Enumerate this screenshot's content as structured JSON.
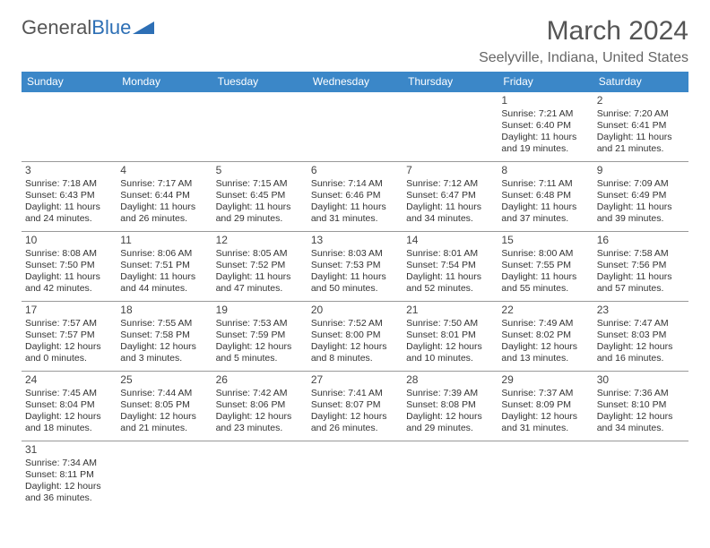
{
  "brand": {
    "part1": "General",
    "part2": "Blue"
  },
  "header": {
    "title": "March 2024",
    "location": "Seelyville, Indiana, United States"
  },
  "colors": {
    "header_bg": "#3b87c8",
    "header_text": "#ffffff",
    "border": "#3b87c8"
  },
  "day_headers": [
    "Sunday",
    "Monday",
    "Tuesday",
    "Wednesday",
    "Thursday",
    "Friday",
    "Saturday"
  ],
  "weeks": [
    [
      null,
      null,
      null,
      null,
      null,
      {
        "n": "1",
        "sr": "Sunrise: 7:21 AM",
        "ss": "Sunset: 6:40 PM",
        "d1": "Daylight: 11 hours",
        "d2": "and 19 minutes."
      },
      {
        "n": "2",
        "sr": "Sunrise: 7:20 AM",
        "ss": "Sunset: 6:41 PM",
        "d1": "Daylight: 11 hours",
        "d2": "and 21 minutes."
      }
    ],
    [
      {
        "n": "3",
        "sr": "Sunrise: 7:18 AM",
        "ss": "Sunset: 6:43 PM",
        "d1": "Daylight: 11 hours",
        "d2": "and 24 minutes."
      },
      {
        "n": "4",
        "sr": "Sunrise: 7:17 AM",
        "ss": "Sunset: 6:44 PM",
        "d1": "Daylight: 11 hours",
        "d2": "and 26 minutes."
      },
      {
        "n": "5",
        "sr": "Sunrise: 7:15 AM",
        "ss": "Sunset: 6:45 PM",
        "d1": "Daylight: 11 hours",
        "d2": "and 29 minutes."
      },
      {
        "n": "6",
        "sr": "Sunrise: 7:14 AM",
        "ss": "Sunset: 6:46 PM",
        "d1": "Daylight: 11 hours",
        "d2": "and 31 minutes."
      },
      {
        "n": "7",
        "sr": "Sunrise: 7:12 AM",
        "ss": "Sunset: 6:47 PM",
        "d1": "Daylight: 11 hours",
        "d2": "and 34 minutes."
      },
      {
        "n": "8",
        "sr": "Sunrise: 7:11 AM",
        "ss": "Sunset: 6:48 PM",
        "d1": "Daylight: 11 hours",
        "d2": "and 37 minutes."
      },
      {
        "n": "9",
        "sr": "Sunrise: 7:09 AM",
        "ss": "Sunset: 6:49 PM",
        "d1": "Daylight: 11 hours",
        "d2": "and 39 minutes."
      }
    ],
    [
      {
        "n": "10",
        "sr": "Sunrise: 8:08 AM",
        "ss": "Sunset: 7:50 PM",
        "d1": "Daylight: 11 hours",
        "d2": "and 42 minutes."
      },
      {
        "n": "11",
        "sr": "Sunrise: 8:06 AM",
        "ss": "Sunset: 7:51 PM",
        "d1": "Daylight: 11 hours",
        "d2": "and 44 minutes."
      },
      {
        "n": "12",
        "sr": "Sunrise: 8:05 AM",
        "ss": "Sunset: 7:52 PM",
        "d1": "Daylight: 11 hours",
        "d2": "and 47 minutes."
      },
      {
        "n": "13",
        "sr": "Sunrise: 8:03 AM",
        "ss": "Sunset: 7:53 PM",
        "d1": "Daylight: 11 hours",
        "d2": "and 50 minutes."
      },
      {
        "n": "14",
        "sr": "Sunrise: 8:01 AM",
        "ss": "Sunset: 7:54 PM",
        "d1": "Daylight: 11 hours",
        "d2": "and 52 minutes."
      },
      {
        "n": "15",
        "sr": "Sunrise: 8:00 AM",
        "ss": "Sunset: 7:55 PM",
        "d1": "Daylight: 11 hours",
        "d2": "and 55 minutes."
      },
      {
        "n": "16",
        "sr": "Sunrise: 7:58 AM",
        "ss": "Sunset: 7:56 PM",
        "d1": "Daylight: 11 hours",
        "d2": "and 57 minutes."
      }
    ],
    [
      {
        "n": "17",
        "sr": "Sunrise: 7:57 AM",
        "ss": "Sunset: 7:57 PM",
        "d1": "Daylight: 12 hours",
        "d2": "and 0 minutes."
      },
      {
        "n": "18",
        "sr": "Sunrise: 7:55 AM",
        "ss": "Sunset: 7:58 PM",
        "d1": "Daylight: 12 hours",
        "d2": "and 3 minutes."
      },
      {
        "n": "19",
        "sr": "Sunrise: 7:53 AM",
        "ss": "Sunset: 7:59 PM",
        "d1": "Daylight: 12 hours",
        "d2": "and 5 minutes."
      },
      {
        "n": "20",
        "sr": "Sunrise: 7:52 AM",
        "ss": "Sunset: 8:00 PM",
        "d1": "Daylight: 12 hours",
        "d2": "and 8 minutes."
      },
      {
        "n": "21",
        "sr": "Sunrise: 7:50 AM",
        "ss": "Sunset: 8:01 PM",
        "d1": "Daylight: 12 hours",
        "d2": "and 10 minutes."
      },
      {
        "n": "22",
        "sr": "Sunrise: 7:49 AM",
        "ss": "Sunset: 8:02 PM",
        "d1": "Daylight: 12 hours",
        "d2": "and 13 minutes."
      },
      {
        "n": "23",
        "sr": "Sunrise: 7:47 AM",
        "ss": "Sunset: 8:03 PM",
        "d1": "Daylight: 12 hours",
        "d2": "and 16 minutes."
      }
    ],
    [
      {
        "n": "24",
        "sr": "Sunrise: 7:45 AM",
        "ss": "Sunset: 8:04 PM",
        "d1": "Daylight: 12 hours",
        "d2": "and 18 minutes."
      },
      {
        "n": "25",
        "sr": "Sunrise: 7:44 AM",
        "ss": "Sunset: 8:05 PM",
        "d1": "Daylight: 12 hours",
        "d2": "and 21 minutes."
      },
      {
        "n": "26",
        "sr": "Sunrise: 7:42 AM",
        "ss": "Sunset: 8:06 PM",
        "d1": "Daylight: 12 hours",
        "d2": "and 23 minutes."
      },
      {
        "n": "27",
        "sr": "Sunrise: 7:41 AM",
        "ss": "Sunset: 8:07 PM",
        "d1": "Daylight: 12 hours",
        "d2": "and 26 minutes."
      },
      {
        "n": "28",
        "sr": "Sunrise: 7:39 AM",
        "ss": "Sunset: 8:08 PM",
        "d1": "Daylight: 12 hours",
        "d2": "and 29 minutes."
      },
      {
        "n": "29",
        "sr": "Sunrise: 7:37 AM",
        "ss": "Sunset: 8:09 PM",
        "d1": "Daylight: 12 hours",
        "d2": "and 31 minutes."
      },
      {
        "n": "30",
        "sr": "Sunrise: 7:36 AM",
        "ss": "Sunset: 8:10 PM",
        "d1": "Daylight: 12 hours",
        "d2": "and 34 minutes."
      }
    ],
    [
      {
        "n": "31",
        "sr": "Sunrise: 7:34 AM",
        "ss": "Sunset: 8:11 PM",
        "d1": "Daylight: 12 hours",
        "d2": "and 36 minutes."
      },
      null,
      null,
      null,
      null,
      null,
      null
    ]
  ]
}
